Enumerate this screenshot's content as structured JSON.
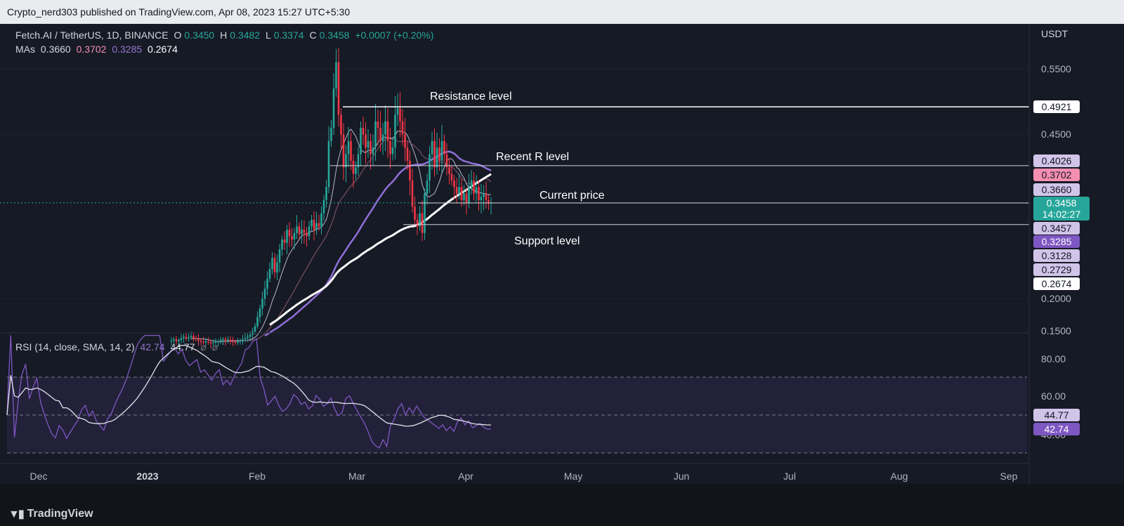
{
  "header": {
    "published": "Crypto_nerd303 published on TradingView.com, Apr 08, 2023 15:27 UTC+5:30"
  },
  "legend": {
    "symbol": "Fetch.AI / TetherUS, 1D, BINANCE",
    "o_label": "O",
    "o": "0.3450",
    "h_label": "H",
    "h": "0.3482",
    "l_label": "L",
    "l": "0.3374",
    "c_label": "C",
    "c": "0.3458",
    "change": "+0.0007 (+0.20%)",
    "mas_label": "MAs",
    "ma_values": [
      "0.3660",
      "0.3702",
      "0.3285",
      "0.2674"
    ],
    "rsi_label": "RSI (14, close, SMA, 14, 2)",
    "rsi_value": "42.74",
    "rsi_sma_value": "44.77",
    "rsi_icons": [
      "⌀",
      "⌀"
    ]
  },
  "axis": {
    "currency": "USDT"
  },
  "annotations": {
    "resistance": "Resistance level",
    "recent_r": "Recent R level",
    "current": "Current price",
    "support": "Support level"
  },
  "price_tags": {
    "resistance": "0.4921",
    "recent_r": "0.4026",
    "ma2": "0.3702",
    "ma1": "0.3660",
    "current": "0.3458",
    "countdown": "14:02:27",
    "mid_line": "0.3457",
    "ma3": "0.3285",
    "support": "0.3128",
    "extra": "0.2729",
    "ma4": "0.2674"
  },
  "rsi_tags": {
    "sma": "44.77",
    "rsi": "42.74"
  },
  "brand": {
    "name": "TradingView",
    "icon": "tradingview-logo-icon"
  },
  "colors": {
    "up": "#26a69a",
    "down": "#f23645",
    "ma1": "#b8b8c8",
    "ma2": "#8a5a6e",
    "ma3": "#8e6fd8",
    "ma4": "#ffffff",
    "rsi": "#7e57c2"
  },
  "chart_data": {
    "type": "candlestick",
    "title": "Fetch.AI / TetherUS, 1D, BINANCE",
    "ylabel": "USDT",
    "ylim": [
      0.15,
      0.6
    ],
    "yticks": [
      "0.1500",
      "0.2000",
      "0.4500",
      "0.5500"
    ],
    "xticks": [
      "Dec",
      "2023",
      "Feb",
      "Mar",
      "Apr",
      "May",
      "Jun",
      "Jul",
      "Aug",
      "Sep"
    ],
    "x_first": "2022-12-04",
    "close": [
      0.136,
      0.138,
      0.135,
      0.137,
      0.14,
      0.142,
      0.139,
      0.141,
      0.143,
      0.14,
      0.138,
      0.136,
      0.134,
      0.133,
      0.135,
      0.134,
      0.132,
      0.133,
      0.134,
      0.135,
      0.137,
      0.138,
      0.136,
      0.137,
      0.135,
      0.134,
      0.133,
      0.135,
      0.136,
      0.138,
      0.14,
      0.142,
      0.145,
      0.15,
      0.158,
      0.172,
      0.185,
      0.2,
      0.215,
      0.23,
      0.245,
      0.262,
      0.24,
      0.255,
      0.275,
      0.29,
      0.285,
      0.305,
      0.295,
      0.29,
      0.3,
      0.31,
      0.298,
      0.305,
      0.3,
      0.295,
      0.31,
      0.32,
      0.305,
      0.315,
      0.31,
      0.33,
      0.35,
      0.37,
      0.44,
      0.46,
      0.52,
      0.56,
      0.48,
      0.45,
      0.4,
      0.42,
      0.44,
      0.41,
      0.39,
      0.4,
      0.42,
      0.46,
      0.45,
      0.43,
      0.44,
      0.42,
      0.43,
      0.47,
      0.46,
      0.44,
      0.45,
      0.47,
      0.44,
      0.42,
      0.43,
      0.48,
      0.49,
      0.47,
      0.45,
      0.43,
      0.41,
      0.38,
      0.34,
      0.32,
      0.31,
      0.33,
      0.3,
      0.36,
      0.38,
      0.42,
      0.44,
      0.4,
      0.43,
      0.41,
      0.44,
      0.42,
      0.4,
      0.39,
      0.38,
      0.37,
      0.36,
      0.37,
      0.35,
      0.36,
      0.345,
      0.37,
      0.38,
      0.36,
      0.37,
      0.35,
      0.355,
      0.36,
      0.35,
      0.345,
      0.3458
    ],
    "ma_series": [
      {
        "name": "MA 0.3660",
        "value": 0.366
      },
      {
        "name": "MA 0.3702",
        "value": 0.3702
      },
      {
        "name": "MA 0.3285",
        "value": 0.3285
      },
      {
        "name": "MA 0.2674",
        "value": 0.2674
      }
    ],
    "levels": [
      {
        "label": "Resistance level",
        "value": 0.4921
      },
      {
        "label": "Recent R level",
        "value": 0.4026
      },
      {
        "label": "Current price",
        "value": 0.3458
      },
      {
        "label": "",
        "value": 0.3457
      },
      {
        "label": "Support level",
        "value": 0.3128
      }
    ],
    "rsi": {
      "ylim": [
        25,
        95
      ],
      "yticks": [
        "80.00",
        "60.00",
        "40.00"
      ],
      "bands": [
        70,
        50,
        30
      ],
      "last": 42.74,
      "sma_last": 44.77
    }
  }
}
